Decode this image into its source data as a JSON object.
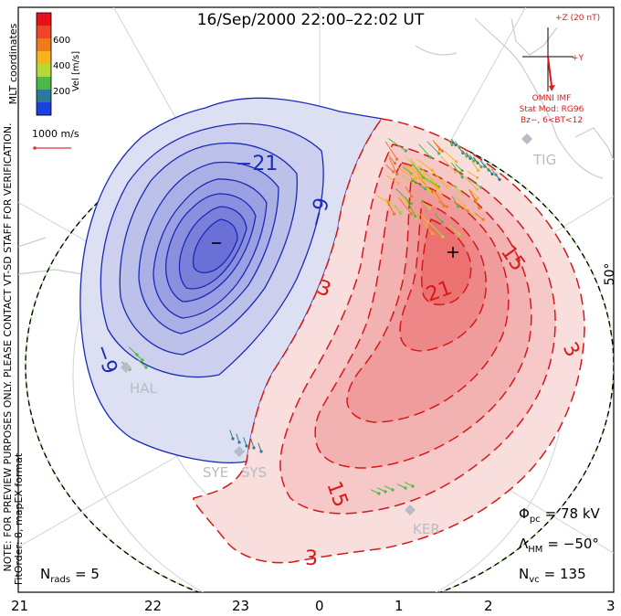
{
  "header": {
    "title": "16/Sep/2000 22:00–22:02 UT"
  },
  "colorbar": {
    "label": "Vel [m/s]",
    "ticks": [
      "600",
      "400",
      "200"
    ],
    "colors": [
      "#e8101a",
      "#f0452a",
      "#f07a20",
      "#f5b51e",
      "#b8d83a",
      "#4cb848",
      "#2c7a9a",
      "#1a40e0"
    ]
  },
  "side_label": "MLT coordinates",
  "scale": {
    "label": "1000 m/s",
    "color": "#e03030"
  },
  "imf": {
    "axis_z": "+Z (20 nT)",
    "axis_y": "+Y",
    "source": "OMNI IMF",
    "model": "Stat Mod: RG96",
    "condition": "Bz−, 6<BT<12",
    "color": "#e01818"
  },
  "note": "NOTE: FOR PREVIEW PURPOSES ONLY. PLEASE CONTACT VT-SD STAFF FOR VERIFICATION.",
  "fit_order": "FitOrder: 8, mapEX format",
  "stations": [
    "TIG",
    "HAL",
    "SYE",
    "SYS",
    "KER"
  ],
  "latitude_label": "50°",
  "contours": {
    "negative": [
      "−21",
      "−9",
      "−9"
    ],
    "positive": [
      "21",
      "15",
      "15",
      "3",
      "3",
      "3"
    ],
    "neg_color": "#1a2ab8",
    "pos_color": "#d81818"
  },
  "stats": {
    "phi_pc": {
      "symbol": "Φ",
      "sub": "pc",
      "value": "= 78 kV"
    },
    "lambda_hm": {
      "symbol": "Λ",
      "sub": "HM",
      "value": "= −50°"
    },
    "n_vc": {
      "symbol": "N",
      "sub": "vc",
      "value": "= 135"
    },
    "n_rads": {
      "symbol": "N",
      "sub": "rads",
      "value": "= 5"
    }
  },
  "mlt_axis": [
    "21",
    "22",
    "23",
    "0",
    "1",
    "2",
    "3"
  ]
}
